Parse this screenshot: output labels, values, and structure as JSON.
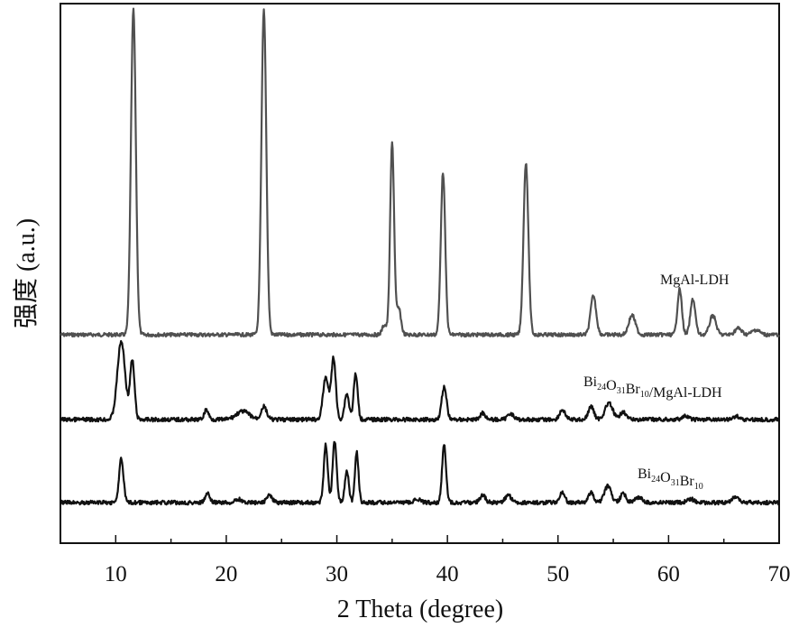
{
  "chart_data": {
    "type": "line",
    "title": "",
    "xlabel": "2 Theta (degree)",
    "ylabel": "强度 (a.u.)",
    "xlim": [
      5,
      70
    ],
    "xticks": [
      "10",
      "20",
      "30",
      "40",
      "50",
      "60",
      "70"
    ],
    "yticks": [],
    "grid": false,
    "legend": "none",
    "series_labels": [
      {
        "id": "ldh",
        "base": "MgAl-LDH",
        "parts": []
      },
      {
        "id": "comp",
        "base": "",
        "parts": [
          [
            "Bi",
            "24"
          ],
          [
            "O",
            "31"
          ],
          [
            "Br",
            "10"
          ]
        ],
        "suffix": "/MgAl-LDH"
      },
      {
        "id": "bob",
        "base": "",
        "parts": [
          [
            "Bi",
            "24"
          ],
          [
            "O",
            "31"
          ],
          [
            "Br",
            "10"
          ]
        ],
        "suffix": ""
      }
    ],
    "series": [
      {
        "name": "MgAl-LDH",
        "color": "#505050",
        "baseline": 0.0,
        "peaks": [
          {
            "x": 11.6,
            "h": 1.0,
            "w": 0.22
          },
          {
            "x": 23.4,
            "h": 1.0,
            "w": 0.22
          },
          {
            "x": 34.3,
            "h": 0.03,
            "w": 0.2
          },
          {
            "x": 35.0,
            "h": 0.59,
            "w": 0.18
          },
          {
            "x": 35.6,
            "h": 0.08,
            "w": 0.2
          },
          {
            "x": 39.6,
            "h": 0.5,
            "w": 0.2
          },
          {
            "x": 47.1,
            "h": 0.53,
            "w": 0.22
          },
          {
            "x": 53.2,
            "h": 0.12,
            "w": 0.25
          },
          {
            "x": 56.7,
            "h": 0.06,
            "w": 0.3
          },
          {
            "x": 61.0,
            "h": 0.14,
            "w": 0.2
          },
          {
            "x": 62.2,
            "h": 0.11,
            "w": 0.22
          },
          {
            "x": 64.0,
            "h": 0.06,
            "w": 0.28
          },
          {
            "x": 66.3,
            "h": 0.02,
            "w": 0.3
          },
          {
            "x": 67.9,
            "h": 0.015,
            "w": 0.35
          }
        ]
      },
      {
        "name": "Bi24O31Br10/MgAl-LDH",
        "color": "#111111",
        "baseline": 0.0,
        "peaks": [
          {
            "x": 10.5,
            "h": 0.24,
            "w": 0.35
          },
          {
            "x": 11.5,
            "h": 0.18,
            "w": 0.2
          },
          {
            "x": 18.2,
            "h": 0.03,
            "w": 0.2
          },
          {
            "x": 21.5,
            "h": 0.025,
            "w": 0.6
          },
          {
            "x": 23.4,
            "h": 0.04,
            "w": 0.25
          },
          {
            "x": 29.0,
            "h": 0.13,
            "w": 0.25
          },
          {
            "x": 29.7,
            "h": 0.19,
            "w": 0.2
          },
          {
            "x": 30.9,
            "h": 0.08,
            "w": 0.2
          },
          {
            "x": 31.7,
            "h": 0.14,
            "w": 0.18
          },
          {
            "x": 39.7,
            "h": 0.1,
            "w": 0.22
          },
          {
            "x": 43.2,
            "h": 0.02,
            "w": 0.25
          },
          {
            "x": 45.7,
            "h": 0.02,
            "w": 0.25
          },
          {
            "x": 50.4,
            "h": 0.03,
            "w": 0.25
          },
          {
            "x": 53.0,
            "h": 0.04,
            "w": 0.25
          },
          {
            "x": 54.6,
            "h": 0.05,
            "w": 0.35
          },
          {
            "x": 55.9,
            "h": 0.025,
            "w": 0.25
          },
          {
            "x": 61.5,
            "h": 0.01,
            "w": 0.3
          },
          {
            "x": 66.1,
            "h": 0.01,
            "w": 0.3
          }
        ]
      },
      {
        "name": "Bi24O31Br10",
        "color": "#111111",
        "baseline": 0.0,
        "peaks": [
          {
            "x": 10.5,
            "h": 0.12,
            "w": 0.2
          },
          {
            "x": 18.3,
            "h": 0.025,
            "w": 0.2
          },
          {
            "x": 21.1,
            "h": 0.01,
            "w": 0.25
          },
          {
            "x": 23.9,
            "h": 0.02,
            "w": 0.25
          },
          {
            "x": 29.0,
            "h": 0.16,
            "w": 0.18
          },
          {
            "x": 29.8,
            "h": 0.17,
            "w": 0.18
          },
          {
            "x": 30.9,
            "h": 0.09,
            "w": 0.18
          },
          {
            "x": 31.8,
            "h": 0.14,
            "w": 0.16
          },
          {
            "x": 37.3,
            "h": 0.01,
            "w": 0.25
          },
          {
            "x": 39.7,
            "h": 0.16,
            "w": 0.18
          },
          {
            "x": 43.2,
            "h": 0.02,
            "w": 0.25
          },
          {
            "x": 45.5,
            "h": 0.02,
            "w": 0.3
          },
          {
            "x": 50.4,
            "h": 0.03,
            "w": 0.22
          },
          {
            "x": 53.0,
            "h": 0.03,
            "w": 0.22
          },
          {
            "x": 54.5,
            "h": 0.045,
            "w": 0.3
          },
          {
            "x": 55.9,
            "h": 0.025,
            "w": 0.25
          },
          {
            "x": 57.3,
            "h": 0.015,
            "w": 0.3
          },
          {
            "x": 62.0,
            "h": 0.01,
            "w": 0.3
          },
          {
            "x": 66.0,
            "h": 0.015,
            "w": 0.3
          }
        ]
      }
    ]
  }
}
